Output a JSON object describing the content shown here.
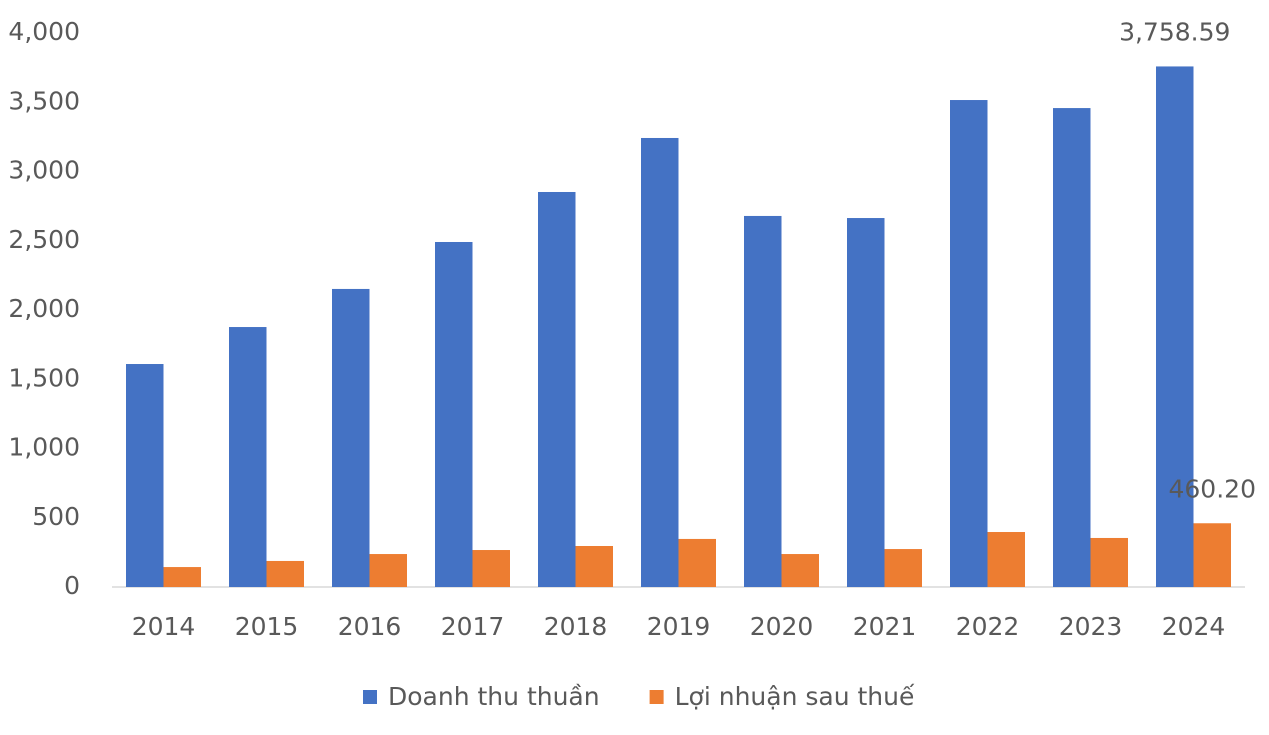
{
  "chart_data": {
    "type": "bar",
    "categories": [
      "2014",
      "2015",
      "2016",
      "2017",
      "2018",
      "2019",
      "2020",
      "2021",
      "2022",
      "2023",
      "2024"
    ],
    "series": [
      {
        "name": "Doanh thu thuần",
        "color": "#4472c4",
        "values": [
          1610,
          1877,
          2152,
          2491,
          2852,
          3242,
          2679,
          2664,
          3516,
          3458,
          3758.59
        ],
        "value_labels": [
          null,
          null,
          null,
          null,
          null,
          null,
          null,
          null,
          null,
          null,
          "3,758.59"
        ]
      },
      {
        "name": "Lợi nhuận sau thuế",
        "color": "#ed7d31",
        "values": [
          144,
          188,
          238,
          267,
          296,
          347,
          238,
          274,
          397,
          354,
          460.2
        ],
        "value_labels": [
          null,
          null,
          null,
          null,
          null,
          null,
          null,
          null,
          null,
          null,
          "460.20"
        ]
      }
    ],
    "ylim": [
      0,
      4000
    ],
    "yticks": [
      0,
      500,
      {
        "value": 1000,
        "label": "1,000"
      },
      {
        "value": 1500,
        "label": "1,500"
      },
      {
        "value": 2000,
        "label": "2,000"
      },
      {
        "value": 2500,
        "label": "2,500"
      },
      {
        "value": 3000,
        "label": "3,000"
      },
      {
        "value": 3500,
        "label": "3,500"
      },
      {
        "value": 4000,
        "label": "4,000"
      }
    ],
    "grid": false,
    "legend": "bottom"
  }
}
